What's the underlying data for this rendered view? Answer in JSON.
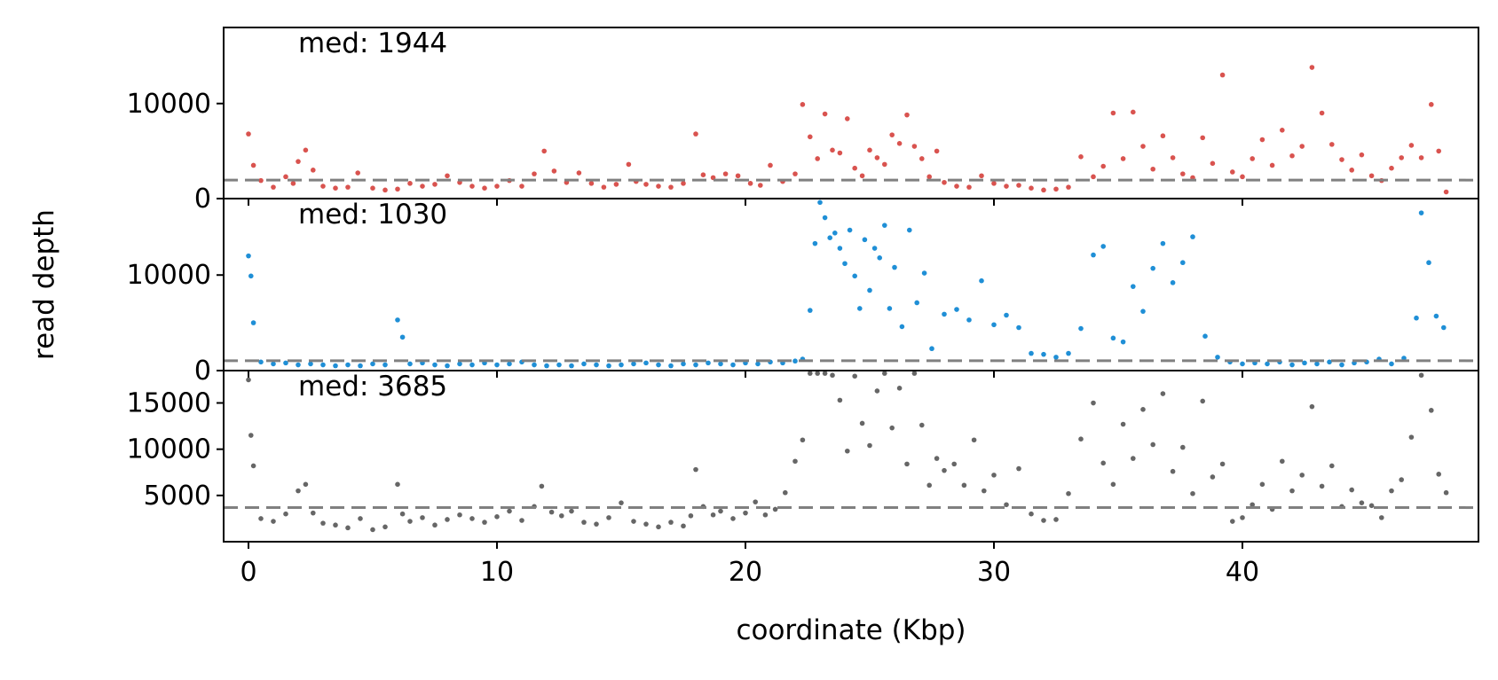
{
  "chart_data": {
    "type": "scatter",
    "xlabel": "coordinate (Kbp)",
    "ylabel": "read depth",
    "xlim": [
      -1.0,
      49.5
    ],
    "x_ticks": [
      0,
      10,
      20,
      30,
      40
    ],
    "grid": false,
    "panels": [
      {
        "name": "",
        "color": "#d9534f",
        "median_label": "med: 1944",
        "median": 1944,
        "ylim": [
          0,
          18000
        ],
        "y_ticks": [
          0,
          10000
        ],
        "x": [
          0.0,
          0.2,
          0.5,
          1.0,
          1.5,
          1.8,
          2.0,
          2.3,
          2.6,
          3.0,
          3.5,
          4.0,
          4.4,
          5.0,
          5.5,
          6.0,
          6.5,
          7.0,
          7.5,
          8.0,
          8.5,
          9.0,
          9.5,
          10.0,
          10.5,
          11.0,
          11.5,
          11.9,
          12.3,
          12.8,
          13.3,
          13.8,
          14.3,
          14.8,
          15.3,
          15.6,
          16.0,
          16.5,
          17.0,
          17.5,
          18.0,
          18.3,
          18.7,
          19.2,
          19.7,
          20.2,
          20.6,
          21.0,
          21.5,
          22.0,
          22.3,
          22.6,
          22.9,
          23.2,
          23.5,
          23.8,
          24.1,
          24.4,
          24.7,
          25.0,
          25.3,
          25.6,
          25.9,
          26.2,
          26.5,
          26.8,
          27.1,
          27.4,
          27.7,
          28.0,
          28.5,
          29.0,
          29.5,
          30.0,
          30.5,
          31.0,
          31.5,
          32.0,
          32.5,
          33.0,
          33.5,
          34.0,
          34.4,
          34.8,
          35.2,
          35.6,
          36.0,
          36.4,
          36.8,
          37.2,
          37.6,
          38.0,
          38.4,
          38.8,
          39.2,
          39.6,
          40.0,
          40.4,
          40.8,
          41.2,
          41.6,
          42.0,
          42.4,
          42.8,
          43.2,
          43.6,
          44.0,
          44.4,
          44.8,
          45.2,
          45.6,
          46.0,
          46.4,
          46.8,
          47.2,
          47.6,
          47.9,
          48.2
        ],
        "y": [
          6800,
          3500,
          1900,
          1200,
          2300,
          1600,
          3900,
          5100,
          3000,
          1300,
          1100,
          1200,
          2700,
          1100,
          900,
          1000,
          1600,
          1300,
          1500,
          2400,
          1700,
          1300,
          1100,
          1300,
          1900,
          1300,
          2600,
          5000,
          2900,
          1700,
          2700,
          1600,
          1200,
          1500,
          3600,
          1800,
          1500,
          1300,
          1200,
          1600,
          6800,
          2500,
          2200,
          2600,
          2400,
          1600,
          1400,
          3500,
          1800,
          2600,
          9900,
          6500,
          4200,
          8900,
          5100,
          4800,
          8400,
          3200,
          2400,
          5100,
          4300,
          3600,
          6700,
          5800,
          8800,
          5500,
          4200,
          2300,
          5000,
          1700,
          1300,
          1200,
          2400,
          1600,
          1300,
          1400,
          1100,
          900,
          1000,
          1200,
          4400,
          2300,
          3400,
          9000,
          4200,
          9100,
          5500,
          3100,
          6600,
          4300,
          2600,
          2200,
          6400,
          3700,
          13000,
          2800,
          2300,
          4200,
          6200,
          3500,
          7200,
          4500,
          5500,
          13800,
          9000,
          5700,
          4100,
          3000,
          4600,
          2400,
          1900,
          3200,
          4300,
          5600,
          4300,
          9900,
          5000,
          700
        ]
      },
      {
        "name": "",
        "color": "#1f8fd6",
        "median_label": "med: 1030",
        "median": 1030,
        "ylim": [
          0,
          18000
        ],
        "y_ticks": [
          0,
          10000
        ],
        "x": [
          0.0,
          0.1,
          0.2,
          0.5,
          1.0,
          1.5,
          2.0,
          2.5,
          3.0,
          3.5,
          4.0,
          4.5,
          5.0,
          5.5,
          6.0,
          6.2,
          6.5,
          7.0,
          7.5,
          8.0,
          8.5,
          9.0,
          9.5,
          10.0,
          10.5,
          11.0,
          11.5,
          12.0,
          12.5,
          13.0,
          13.5,
          14.0,
          14.5,
          15.0,
          15.5,
          16.0,
          16.5,
          17.0,
          17.5,
          18.0,
          18.5,
          19.0,
          19.5,
          20.0,
          20.5,
          21.0,
          21.5,
          22.0,
          22.3,
          22.6,
          22.8,
          23.0,
          23.2,
          23.4,
          23.6,
          23.8,
          24.0,
          24.2,
          24.4,
          24.6,
          24.8,
          25.0,
          25.2,
          25.4,
          25.6,
          25.8,
          26.0,
          26.3,
          26.6,
          26.9,
          27.2,
          27.5,
          28.0,
          28.5,
          29.0,
          29.5,
          30.0,
          30.5,
          31.0,
          31.5,
          32.0,
          32.5,
          33.0,
          33.5,
          34.0,
          34.4,
          34.8,
          35.2,
          35.6,
          36.0,
          36.4,
          36.8,
          37.2,
          37.6,
          38.0,
          38.5,
          39.0,
          39.5,
          40.0,
          40.5,
          41.0,
          41.5,
          42.0,
          42.5,
          43.0,
          43.5,
          44.0,
          44.5,
          45.0,
          45.5,
          46.0,
          46.5,
          47.0,
          47.2,
          47.5,
          47.8,
          48.1
        ],
        "y": [
          12000,
          9900,
          5000,
          900,
          700,
          800,
          600,
          700,
          600,
          500,
          600,
          500,
          700,
          600,
          5300,
          3500,
          700,
          800,
          600,
          500,
          700,
          600,
          800,
          600,
          700,
          900,
          600,
          500,
          600,
          500,
          700,
          600,
          500,
          600,
          700,
          800,
          600,
          500,
          700,
          600,
          800,
          700,
          600,
          800,
          700,
          900,
          800,
          1000,
          1200,
          6300,
          13300,
          17600,
          16000,
          13900,
          14400,
          12800,
          11200,
          14700,
          9900,
          6500,
          13700,
          8400,
          12800,
          11800,
          15200,
          6500,
          10800,
          4600,
          14700,
          7100,
          10200,
          2300,
          5900,
          6400,
          5300,
          9400,
          4800,
          5800,
          4500,
          1800,
          1700,
          1400,
          1800,
          4400,
          12100,
          13000,
          3400,
          3000,
          8800,
          6200,
          10700,
          13300,
          9200,
          11300,
          14000,
          3600,
          1400,
          900,
          700,
          800,
          700,
          900,
          600,
          800,
          700,
          900,
          600,
          800,
          900,
          1200,
          700,
          1300,
          5500,
          16500,
          11300,
          5700,
          4500
        ]
      },
      {
        "name": "",
        "color": "#666666",
        "median_label": "med: 3685",
        "median": 3685,
        "ylim": [
          0,
          18500
        ],
        "y_ticks": [
          5000,
          10000,
          15000
        ],
        "x": [
          0.0,
          0.1,
          0.2,
          0.5,
          1.0,
          1.5,
          2.0,
          2.3,
          2.6,
          3.0,
          3.5,
          4.0,
          4.5,
          5.0,
          5.5,
          6.0,
          6.2,
          6.5,
          7.0,
          7.5,
          8.0,
          8.5,
          9.0,
          9.5,
          10.0,
          10.5,
          11.0,
          11.5,
          11.8,
          12.2,
          12.6,
          13.0,
          13.5,
          14.0,
          14.5,
          15.0,
          15.5,
          16.0,
          16.5,
          17.0,
          17.5,
          17.8,
          18.0,
          18.3,
          18.7,
          19.0,
          19.5,
          20.0,
          20.4,
          20.8,
          21.2,
          21.6,
          22.0,
          22.3,
          22.6,
          22.9,
          23.2,
          23.5,
          23.8,
          24.1,
          24.4,
          24.7,
          25.0,
          25.3,
          25.6,
          25.9,
          26.2,
          26.5,
          26.8,
          27.1,
          27.4,
          27.7,
          28.0,
          28.4,
          28.8,
          29.2,
          29.6,
          30.0,
          30.5,
          31.0,
          31.5,
          32.0,
          32.5,
          33.0,
          33.5,
          34.0,
          34.4,
          34.8,
          35.2,
          35.6,
          36.0,
          36.4,
          36.8,
          37.2,
          37.6,
          38.0,
          38.4,
          38.8,
          39.2,
          39.6,
          40.0,
          40.4,
          40.8,
          41.2,
          41.6,
          42.0,
          42.4,
          42.8,
          43.2,
          43.6,
          44.0,
          44.4,
          44.8,
          45.2,
          45.6,
          46.0,
          46.4,
          46.8,
          47.2,
          47.6,
          47.9,
          48.2
        ],
        "y": [
          17500,
          11500,
          8200,
          2500,
          2200,
          3000,
          5500,
          6200,
          3100,
          2000,
          1800,
          1500,
          2500,
          1300,
          1600,
          6200,
          3000,
          2200,
          2600,
          1800,
          2400,
          2900,
          2500,
          2100,
          2700,
          3300,
          2300,
          3800,
          6000,
          3200,
          2800,
          3300,
          2100,
          1900,
          2600,
          4200,
          2200,
          1900,
          1600,
          2100,
          1700,
          2800,
          7800,
          3800,
          2900,
          3300,
          2500,
          3100,
          4300,
          2900,
          3500,
          5300,
          8700,
          11000,
          18200,
          18200,
          18200,
          18000,
          15300,
          9800,
          17900,
          12800,
          10400,
          16300,
          18200,
          12300,
          16600,
          8400,
          18200,
          12600,
          6100,
          9000,
          7700,
          8400,
          6100,
          11000,
          5500,
          7200,
          4000,
          7900,
          3000,
          2300,
          2400,
          5200,
          11100,
          15000,
          8500,
          6200,
          12700,
          9000,
          14300,
          10500,
          16000,
          7600,
          10200,
          5200,
          15200,
          7000,
          8400,
          2200,
          2600,
          4000,
          6200,
          3500,
          8700,
          5500,
          7200,
          14600,
          6000,
          8200,
          3800,
          5600,
          4200,
          3900,
          2600,
          5500,
          6700,
          11300,
          18000,
          14200,
          7300,
          5300
        ]
      }
    ]
  }
}
